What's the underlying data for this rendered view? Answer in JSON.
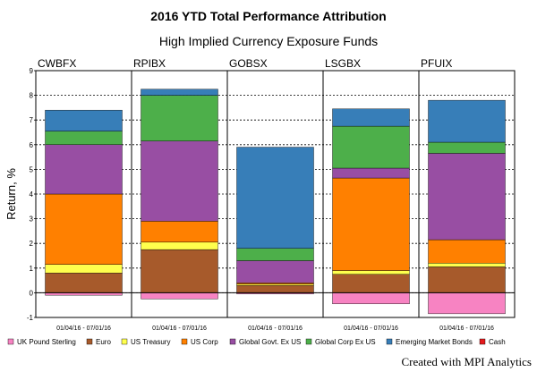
{
  "chart_data": {
    "type": "bar",
    "stacked": true,
    "title": "2016 YTD Total Performance Attribution",
    "subtitle": "High Implied Currency Exposure Funds",
    "ylabel": "Return, %",
    "ylim": [
      -1,
      9
    ],
    "yticks": [
      -1,
      0,
      1,
      2,
      3,
      4,
      5,
      6,
      7,
      8,
      9
    ],
    "grid": "horizontal dotted",
    "legend_position": "bottom",
    "funds": [
      {
        "name": "CWBFX",
        "period": "01/04/16 - 07/01/16",
        "values": {
          "uk_pound": -0.1,
          "euro": 0.8,
          "us_treasury": 0.35,
          "us_corp": 2.85,
          "global_govt": 2.0,
          "global_corp": 0.55,
          "emerging": 0.85,
          "cash": 0.0
        }
      },
      {
        "name": "RPIBX",
        "period": "01/04/16 - 07/01/16",
        "values": {
          "uk_pound": -0.25,
          "euro": 1.75,
          "us_treasury": 0.3,
          "us_corp": 0.85,
          "global_govt": 3.25,
          "global_corp": 1.85,
          "emerging": 0.25,
          "cash": 0.0
        }
      },
      {
        "name": "GOBSX",
        "period": "01/04/16 - 07/01/16",
        "values": {
          "uk_pound": -0.05,
          "euro": 0.3,
          "us_treasury": 0.05,
          "us_corp": 0.05,
          "global_govt": 0.9,
          "global_corp": 0.5,
          "emerging": 4.1,
          "cash": 0.0
        }
      },
      {
        "name": "LSGBX",
        "period": "01/04/16 - 07/01/16",
        "values": {
          "uk_pound": -0.45,
          "euro": 0.75,
          "us_treasury": 0.15,
          "us_corp": 3.75,
          "global_govt": 0.4,
          "global_corp": 1.7,
          "emerging": 0.7,
          "cash": 0.0
        }
      },
      {
        "name": "PFUIX",
        "period": "01/04/16 - 07/01/16",
        "values": {
          "uk_pound": -0.85,
          "euro": 1.05,
          "us_treasury": 0.15,
          "us_corp": 0.95,
          "global_govt": 3.5,
          "global_corp": 0.45,
          "emerging": 1.7,
          "cash": 0.0
        }
      }
    ],
    "series": [
      {
        "key": "uk_pound",
        "name": "UK Pound Sterling",
        "color": "#f783c2"
      },
      {
        "key": "euro",
        "name": "Euro",
        "color": "#a75a2b"
      },
      {
        "key": "us_treasury",
        "name": "US Treasury",
        "color": "#ffff4d"
      },
      {
        "key": "us_corp",
        "name": "US Corp",
        "color": "#ff8000"
      },
      {
        "key": "global_govt",
        "name": "Global Govt. Ex US",
        "color": "#984ea3"
      },
      {
        "key": "global_corp",
        "name": "Global Corp Ex US",
        "color": "#4daf4a"
      },
      {
        "key": "emerging",
        "name": "Emerging Market Bonds",
        "color": "#377eb8"
      },
      {
        "key": "cash",
        "name": "Cash",
        "color": "#e41a1c"
      }
    ]
  },
  "footer": {
    "credit": "Created with MPI Analytics"
  }
}
